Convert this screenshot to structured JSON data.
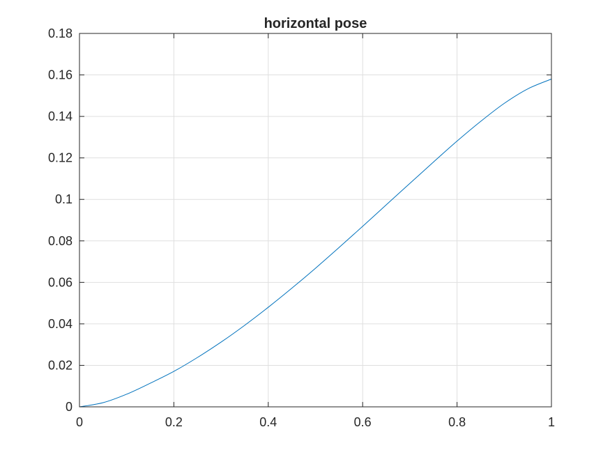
{
  "chart_data": {
    "type": "line",
    "title": "horizontal pose",
    "xlabel": "",
    "ylabel": "",
    "xlim": [
      0,
      1
    ],
    "ylim": [
      0,
      0.18
    ],
    "x_ticks": [
      0,
      0.2,
      0.4,
      0.6,
      0.8,
      1
    ],
    "x_tick_labels": [
      "0",
      "0.2",
      "0.4",
      "0.6",
      "0.8",
      "1"
    ],
    "y_ticks": [
      0,
      0.02,
      0.04,
      0.06,
      0.08,
      0.1,
      0.12,
      0.14,
      0.16,
      0.18
    ],
    "y_tick_labels": [
      "0",
      "0.02",
      "0.04",
      "0.06",
      "0.08",
      "0.1",
      "0.12",
      "0.14",
      "0.16",
      "0.18"
    ],
    "grid": true,
    "colors": {
      "line": "#0072BD",
      "grid": "#DFDFDF",
      "axes": "#262626"
    },
    "series": [
      {
        "x": [
          0,
          0.05,
          0.1,
          0.15,
          0.2,
          0.25,
          0.3,
          0.35,
          0.4,
          0.45,
          0.5,
          0.55,
          0.6,
          0.65,
          0.7,
          0.75,
          0.8,
          0.85,
          0.9,
          0.95,
          1
        ],
        "y": [
          0,
          0.002,
          0.0061,
          0.0114,
          0.0171,
          0.0238,
          0.0312,
          0.0393,
          0.048,
          0.0572,
          0.0668,
          0.0768,
          0.087,
          0.0974,
          0.1077,
          0.118,
          0.1281,
          0.1376,
          0.1463,
          0.1533,
          0.158
        ]
      }
    ]
  }
}
